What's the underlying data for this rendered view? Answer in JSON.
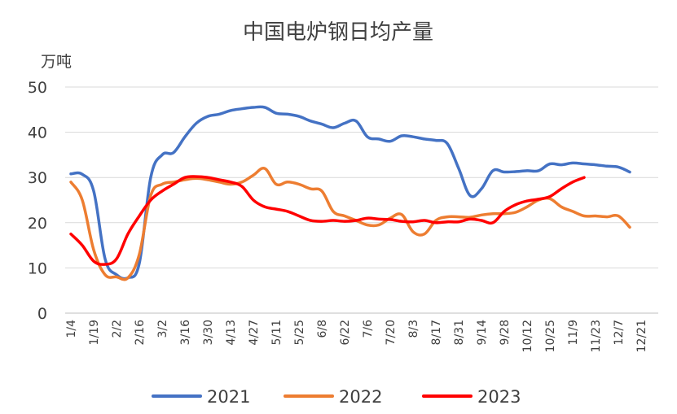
{
  "chart_data": {
    "type": "line",
    "title": "中国电炉钢日均产量",
    "ylabel": "万吨",
    "xlabel": "",
    "ylim": [
      0,
      50
    ],
    "y_ticks": [
      0,
      10,
      20,
      30,
      40,
      50
    ],
    "grid": true,
    "legend_position": "bottom",
    "x_tick_labels": [
      "1/4",
      "1/19",
      "2/2",
      "2/16",
      "3/2",
      "3/16",
      "3/30",
      "4/13",
      "4/27",
      "5/11",
      "5/25",
      "6/8",
      "6/22",
      "7/6",
      "7/20",
      "8/3",
      "8/17",
      "8/31",
      "9/14",
      "9/28",
      "10/12",
      "10/25",
      "11/9",
      "11/23",
      "12/7",
      "12/21"
    ],
    "series": [
      {
        "name": "2021",
        "color": "#4472C4",
        "values": [
          30.8,
          30.7,
          27.0,
          12.0,
          8.5,
          7.8,
          11.0,
          30.0,
          35.0,
          35.5,
          39.0,
          42.0,
          43.5,
          44.0,
          44.8,
          45.2,
          45.5,
          45.5,
          44.2,
          44.0,
          43.5,
          42.5,
          41.8,
          41.0,
          42.0,
          42.5,
          39.0,
          38.5,
          38.0,
          39.2,
          39.0,
          38.5,
          38.2,
          37.5,
          32.0,
          26.0,
          27.5,
          31.5,
          31.2,
          31.3,
          31.5,
          31.5,
          33.0,
          32.8,
          33.2,
          33.0,
          32.8,
          32.5,
          32.3,
          31.2
        ]
      },
      {
        "name": "2022",
        "color": "#ED7D31",
        "values": [
          29.0,
          25.0,
          14.0,
          8.5,
          8.0,
          7.8,
          13.0,
          26.0,
          28.5,
          29.0,
          29.5,
          29.8,
          29.5,
          29.0,
          28.5,
          29.0,
          30.5,
          32.0,
          28.5,
          29.0,
          28.5,
          27.5,
          27.0,
          22.5,
          21.5,
          20.5,
          19.5,
          19.5,
          21.0,
          21.8,
          18.0,
          17.5,
          20.5,
          21.3,
          21.3,
          21.2,
          21.7,
          22.0,
          22.0,
          22.3,
          23.5,
          25.0,
          25.3,
          23.5,
          22.5,
          21.5,
          21.5,
          21.3,
          21.5,
          19.0
        ]
      },
      {
        "name": "2023",
        "color": "#FF0000",
        "values": [
          17.5,
          15.0,
          11.5,
          10.8,
          12.0,
          17.5,
          21.5,
          25.0,
          27.0,
          28.5,
          30.0,
          30.2,
          30.0,
          29.5,
          29.0,
          28.0,
          25.0,
          23.5,
          23.0,
          22.5,
          21.5,
          20.5,
          20.3,
          20.5,
          20.3,
          20.5,
          21.0,
          20.8,
          20.7,
          20.3,
          20.2,
          20.5,
          20.0,
          20.2,
          20.2,
          20.8,
          20.5,
          20.0,
          22.5,
          24.0,
          24.8,
          25.2,
          25.8,
          27.5,
          29.0,
          30.0
        ]
      }
    ]
  }
}
